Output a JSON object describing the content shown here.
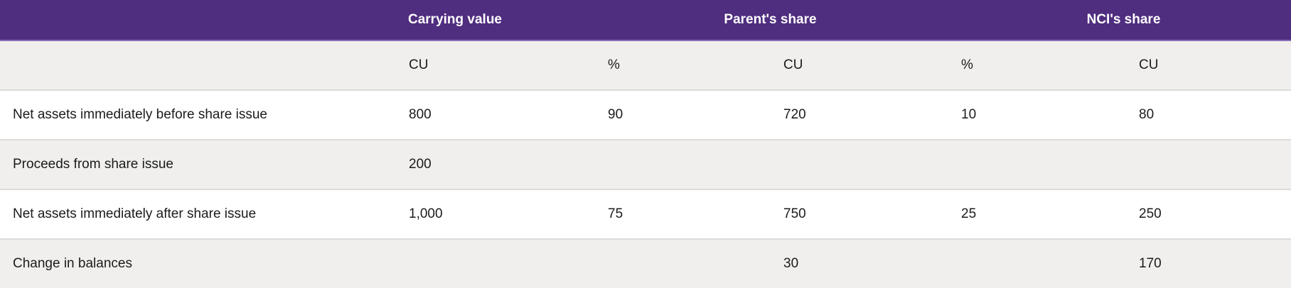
{
  "table": {
    "colors": {
      "header_bg": "#4f2d7f",
      "header_underline": "#8a6cb8",
      "header_text": "#ffffff",
      "row_alt_bg": "#f0efed",
      "row_bg": "#ffffff",
      "separator": "#dcdbd9",
      "text": "#1b1b1b"
    },
    "group_header": {
      "carrying_value": "Carrying value",
      "parents_share": "Parent's share",
      "ncis_share": "NCI's share"
    },
    "unit_header": {
      "carrying_cu": "CU",
      "parent_pct": "%",
      "parent_cu": "CU",
      "nci_pct": "%",
      "nci_cu": "CU"
    },
    "rows": [
      {
        "label": "Net assets immediately before share issue",
        "carrying_cu": "800",
        "parent_pct": "90",
        "parent_cu": "720",
        "nci_pct": "10",
        "nci_cu": "80"
      },
      {
        "label": "Proceeds from share issue",
        "carrying_cu": "200",
        "parent_pct": "",
        "parent_cu": "",
        "nci_pct": "",
        "nci_cu": ""
      },
      {
        "label": "Net assets immediately after share issue",
        "carrying_cu": "1,000",
        "parent_pct": "75",
        "parent_cu": "750",
        "nci_pct": "25",
        "nci_cu": "250"
      },
      {
        "label": "Change in balances",
        "carrying_cu": "",
        "parent_pct": "",
        "parent_cu": "30",
        "nci_pct": "",
        "nci_cu": "170"
      }
    ]
  }
}
